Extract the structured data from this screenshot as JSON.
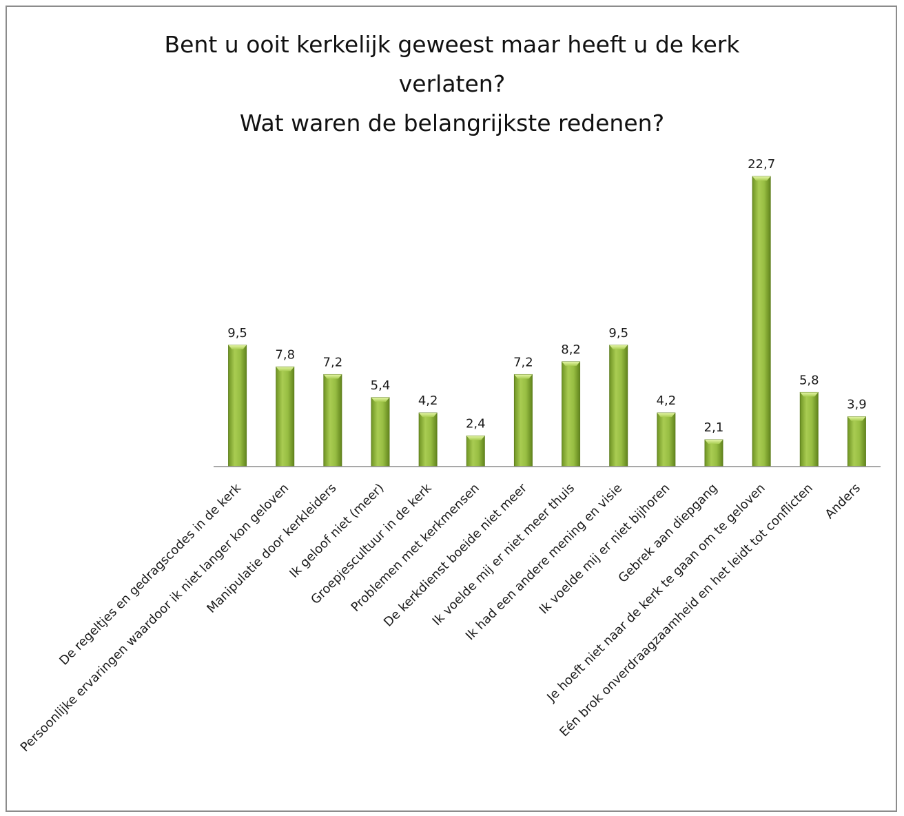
{
  "title_lines": [
    "Bent u ooit kerkelijk geweest maar heeft u de kerk",
    "verlaten?",
    "Wat waren de belangrijkste redenen?"
  ],
  "colors": {
    "bar_fill": "#8fb43a",
    "bar_edge": "#5f7f1e",
    "axis": "#8c8c8c"
  },
  "chart_data": {
    "type": "bar",
    "title": "Bent u ooit kerkelijk geweest maar heeft u de kerk verlaten? Wat waren de belangrijkste redenen?",
    "categories": [
      "De regeltjes en gedragscodes in de kerk",
      "Persoonlijke ervaringen waardoor ik niet langer kon geloven",
      "Manipulatie door kerkleiders",
      "Ik geloof niet (meer)",
      "Groepjescultuur in de kerk",
      "Problemen met kerkmensen",
      "De kerkdienst boeide niet meer",
      "Ik voelde mij er niet meer thuis",
      "Ik had een andere mening en visie",
      "Ik voelde mij er niet bijhoren",
      "Gebrek aan diepgang",
      "Je hoeft niet naar de kerk te gaan om te geloven",
      "Eén brok onverdraagzaamheid en het leidt tot conflicten",
      "Anders"
    ],
    "values": [
      9.5,
      7.8,
      7.2,
      5.4,
      4.2,
      2.4,
      7.2,
      8.2,
      9.5,
      4.2,
      2.1,
      22.7,
      5.8,
      3.9
    ],
    "value_labels": [
      "9,5",
      "7,8",
      "7,2",
      "5,4",
      "4,2",
      "2,4",
      "7,2",
      "8,2",
      "9,5",
      "4,2",
      "2,1",
      "22,7",
      "5,8",
      "3,9"
    ],
    "xlabel": "",
    "ylabel": "",
    "ylim": [
      0,
      22.7
    ],
    "grid": false,
    "legend": "none"
  }
}
